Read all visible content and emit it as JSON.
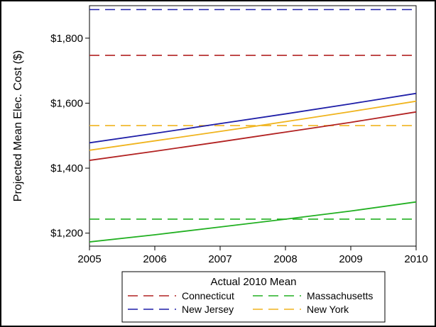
{
  "chart_data": {
    "type": "line",
    "xlabel": "",
    "ylabel": "Projected Mean Elec. Cost ($)",
    "xlim": [
      2005,
      2010
    ],
    "ylim": [
      1160,
      1900
    ],
    "x_ticks": [
      2005,
      2006,
      2007,
      2008,
      2009,
      2010
    ],
    "y_ticks": [
      1200,
      1400,
      1600,
      1800
    ],
    "y_tick_labels": [
      "$1,200",
      "$1,400",
      "$1,600",
      "$1,800"
    ],
    "grid": false,
    "legend": {
      "title": "Actual 2010 Mean",
      "placement": "bottom",
      "entries": [
        "Connecticut",
        "Massachusetts",
        "New Jersey",
        "New York"
      ]
    },
    "series": [
      {
        "name": "New Jersey",
        "color": "#1f1fa8",
        "x": [
          2005,
          2006,
          2007,
          2008,
          2009,
          2010
        ],
        "y": [
          1478,
          1507,
          1537,
          1567,
          1598,
          1630
        ]
      },
      {
        "name": "New York",
        "color": "#f0b41e",
        "x": [
          2005,
          2006,
          2007,
          2008,
          2009,
          2010
        ],
        "y": [
          1455,
          1484,
          1513,
          1543,
          1574,
          1606
        ]
      },
      {
        "name": "Connecticut",
        "color": "#b22222",
        "x": [
          2005,
          2006,
          2007,
          2008,
          2009,
          2010
        ],
        "y": [
          1424,
          1452,
          1481,
          1511,
          1541,
          1573
        ]
      },
      {
        "name": "Massachusetts",
        "color": "#22b022",
        "x": [
          2005,
          2006,
          2007,
          2008,
          2009,
          2010
        ],
        "y": [
          1173,
          1195,
          1219,
          1243,
          1268,
          1296
        ]
      }
    ],
    "reference_lines": [
      {
        "name": "New Jersey",
        "color": "#1f1fa8",
        "value": 1888
      },
      {
        "name": "Connecticut",
        "color": "#b22222",
        "value": 1747
      },
      {
        "name": "New York",
        "color": "#f0b41e",
        "value": 1531
      },
      {
        "name": "Massachusetts",
        "color": "#22b022",
        "value": 1243
      }
    ]
  }
}
